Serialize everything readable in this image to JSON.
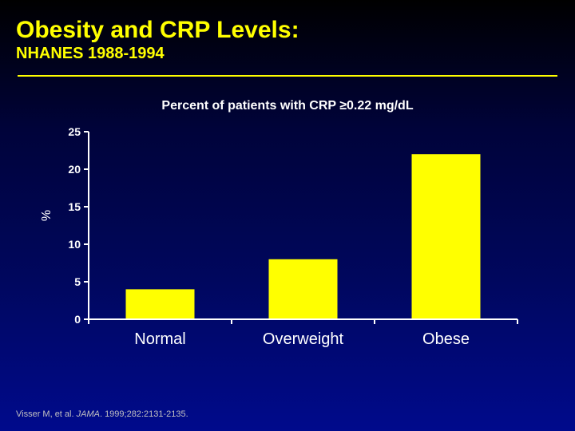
{
  "slide": {
    "title": "Obesity and CRP Levels:",
    "subtitle": "NHANES 1988-1994",
    "citation": {
      "authors": "Visser M, et al. ",
      "journal": "JAMA",
      "details": ". 1999;282:2131-2135."
    }
  },
  "colors": {
    "title": "#ffff00",
    "bar": "#ffff00",
    "text": "#ffffff",
    "axis": "#ffffff",
    "citation": "#c0c0c0"
  },
  "chart_data": {
    "type": "bar",
    "title": "Percent of patients with CRP ≥0.22 mg/dL",
    "xlabel": "",
    "ylabel": "%",
    "categories": [
      "Normal",
      "Overweight",
      "Obese"
    ],
    "values": [
      4,
      8,
      22
    ],
    "ylim": [
      0,
      25
    ],
    "yticks": [
      0,
      5,
      10,
      15,
      20,
      25
    ],
    "grid": false,
    "legend": "none"
  }
}
